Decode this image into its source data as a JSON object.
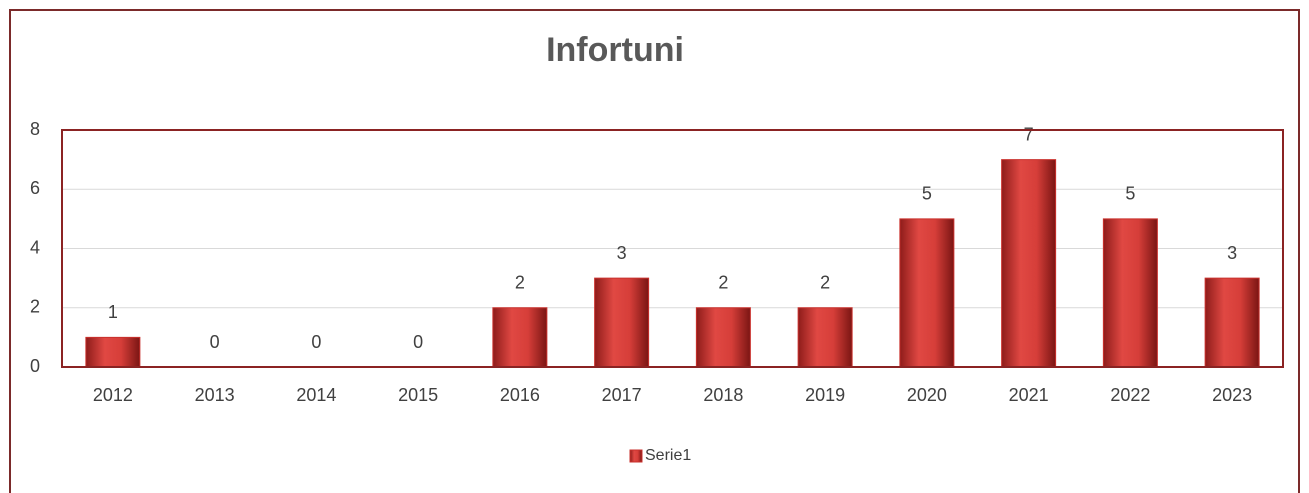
{
  "chart_data": {
    "type": "bar",
    "title": "Infortuni",
    "categories": [
      "2012",
      "2013",
      "2014",
      "2015",
      "2016",
      "2017",
      "2018",
      "2019",
      "2020",
      "2021",
      "2022",
      "2023"
    ],
    "series": [
      {
        "name": "Serie1",
        "color": "#c9302c",
        "values": [
          1,
          0,
          0,
          0,
          2,
          3,
          2,
          2,
          5,
          7,
          5,
          3
        ]
      }
    ],
    "ylim": [
      0,
      8
    ],
    "yticks": [
      0,
      2,
      4,
      6,
      8
    ],
    "grid": true,
    "legend": "bottom"
  }
}
